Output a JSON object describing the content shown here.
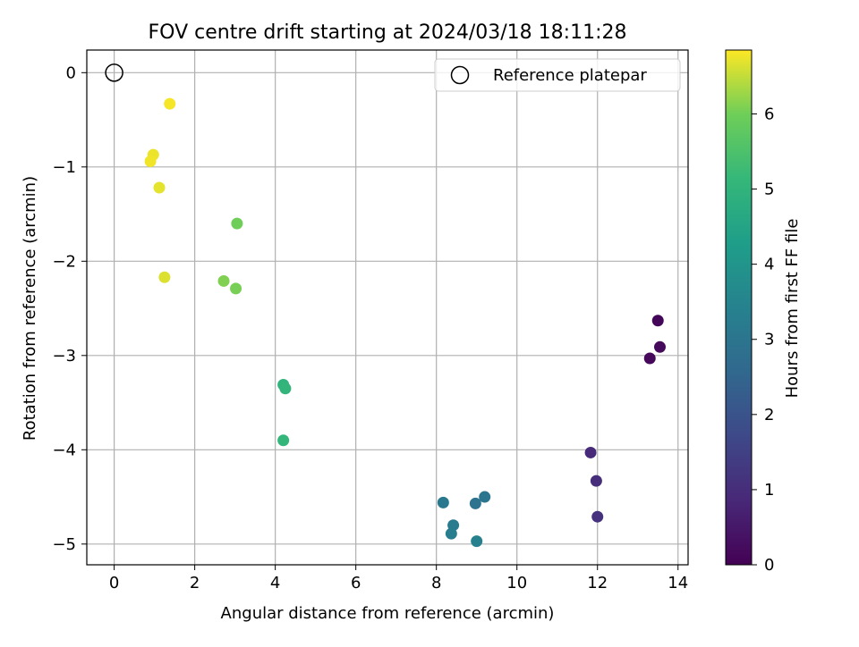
{
  "chart_data": {
    "type": "scatter",
    "title": "FOV centre drift starting at 2024/03/18 18:11:28",
    "xlabel": "Angular distance from reference (arcmin)",
    "ylabel": "Rotation from reference (arcmin)",
    "xlim": [
      -0.68,
      14.25
    ],
    "ylim": [
      -5.22,
      0.24
    ],
    "xticks": [
      0,
      2,
      4,
      6,
      8,
      10,
      12,
      14
    ],
    "yticks": [
      0,
      -1,
      -2,
      -3,
      -4,
      -5
    ],
    "xtick_labels": [
      "0",
      "2",
      "4",
      "6",
      "8",
      "10",
      "12",
      "14"
    ],
    "ytick_labels": [
      "0",
      "−1",
      "−2",
      "−3",
      "−4",
      "−5"
    ],
    "grid": true,
    "legend": {
      "placement": "top-right",
      "entries": [
        {
          "label": "Reference platepar",
          "marker": "open-circle",
          "x": 0,
          "y": 0
        }
      ]
    },
    "colorbar": {
      "label": "Hours from first FF file",
      "colormap": "viridis",
      "range": [
        0,
        6.85
      ],
      "ticks": [
        0,
        1,
        2,
        3,
        4,
        5,
        6
      ],
      "tick_labels": [
        "0",
        "1",
        "2",
        "3",
        "4",
        "5",
        "6"
      ]
    },
    "points": [
      {
        "x": 13.5,
        "y": -2.63,
        "hours": 0.1
      },
      {
        "x": 13.55,
        "y": -2.91,
        "hours": 0.2
      },
      {
        "x": 13.3,
        "y": -3.03,
        "hours": 0.15
      },
      {
        "x": 11.83,
        "y": -4.03,
        "hours": 0.9
      },
      {
        "x": 11.97,
        "y": -4.33,
        "hours": 1.0
      },
      {
        "x": 12.0,
        "y": -4.71,
        "hours": 1.1
      },
      {
        "x": 9.2,
        "y": -4.5,
        "hours": 3.0
      },
      {
        "x": 8.97,
        "y": -4.57,
        "hours": 2.9
      },
      {
        "x": 8.17,
        "y": -4.56,
        "hours": 3.1
      },
      {
        "x": 8.42,
        "y": -4.8,
        "hours": 3.2
      },
      {
        "x": 8.37,
        "y": -4.89,
        "hours": 3.3
      },
      {
        "x": 9.0,
        "y": -4.97,
        "hours": 3.35
      },
      {
        "x": 4.2,
        "y": -3.31,
        "hours": 5.0
      },
      {
        "x": 4.25,
        "y": -3.35,
        "hours": 5.05
      },
      {
        "x": 4.2,
        "y": -3.9,
        "hours": 5.1
      },
      {
        "x": 3.05,
        "y": -1.6,
        "hours": 6.0
      },
      {
        "x": 2.72,
        "y": -2.21,
        "hours": 6.1
      },
      {
        "x": 3.02,
        "y": -2.29,
        "hours": 6.05
      },
      {
        "x": 1.38,
        "y": -0.33,
        "hours": 6.8
      },
      {
        "x": 0.97,
        "y": -0.87,
        "hours": 6.75
      },
      {
        "x": 0.9,
        "y": -0.94,
        "hours": 6.78
      },
      {
        "x": 1.12,
        "y": -1.22,
        "hours": 6.7
      },
      {
        "x": 1.25,
        "y": -2.17,
        "hours": 6.65
      }
    ]
  }
}
